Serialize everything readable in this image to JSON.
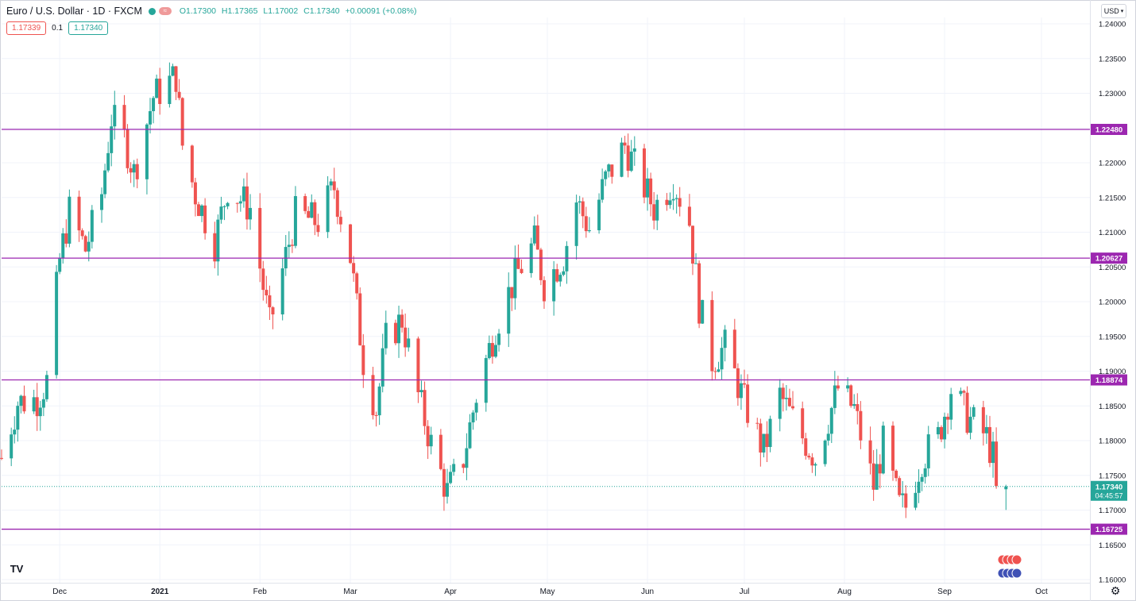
{
  "header": {
    "symbol": "Euro / U.S. Dollar · 1D · FXCM",
    "open": "O1.17300",
    "high": "H1.17365",
    "low": "L1.17002",
    "close": "C1.17340",
    "change": "+0.00091 (+0.08%)",
    "bid": "1.17339",
    "spread": "0.1",
    "ask": "1.17340"
  },
  "currency_button": "USD",
  "colors": {
    "up": "#26a69a",
    "down": "#ef5350",
    "level_line": "#9c27b0",
    "grid": "#f0f3fa"
  },
  "icons": {
    "logo": "tradingview-logo",
    "settings": "gear-icon"
  },
  "chart_data": {
    "type": "candlestick",
    "title": "Euro / U.S. Dollar",
    "ylim": [
      1.16,
      1.24
    ],
    "y_ticks": [
      "1.24000",
      "1.23500",
      "1.23000",
      "1.22500",
      "1.22000",
      "1.21500",
      "1.21000",
      "1.20500",
      "1.20000",
      "1.19500",
      "1.19000",
      "1.18500",
      "1.18000",
      "1.17500",
      "1.17000",
      "1.16500",
      "1.16000"
    ],
    "x_ticks": [
      "Dec",
      "2021",
      "Feb",
      "Mar",
      "Apr",
      "May",
      "Jun",
      "Jul",
      "Aug",
      "Sep",
      "Oct"
    ],
    "x_range": [
      "2020-11-13",
      "2021-10-16"
    ],
    "horizontal_levels": [
      "1.22480",
      "1.20627",
      "1.18874",
      "1.16725"
    ],
    "last_price": "1.17340",
    "countdown": "04:45:57",
    "waypoints": [
      {
        "d": "2020-11-13",
        "c": 1.1775
      },
      {
        "d": "2020-11-18",
        "c": 1.1855
      },
      {
        "d": "2020-11-24",
        "c": 1.186
      },
      {
        "d": "2020-11-27",
        "c": 1.1885
      },
      {
        "d": "2020-12-01",
        "c": 1.206
      },
      {
        "d": "2020-12-04",
        "c": 1.213
      },
      {
        "d": "2020-12-09",
        "c": 1.2075
      },
      {
        "d": "2020-12-14",
        "c": 1.2155
      },
      {
        "d": "2020-12-17",
        "c": 1.2265
      },
      {
        "d": "2020-12-21",
        "c": 1.2235
      },
      {
        "d": "2020-12-24",
        "c": 1.2185
      },
      {
        "d": "2020-12-30",
        "c": 1.2295
      },
      {
        "d": "2021-01-06",
        "c": 1.2325
      },
      {
        "d": "2021-01-08",
        "c": 1.2225
      },
      {
        "d": "2021-01-12",
        "c": 1.2155
      },
      {
        "d": "2021-01-18",
        "c": 1.2085
      },
      {
        "d": "2021-01-22",
        "c": 1.2165
      },
      {
        "d": "2021-01-29",
        "c": 1.2135
      },
      {
        "d": "2021-02-04",
        "c": 1.1965
      },
      {
        "d": "2021-02-08",
        "c": 1.2045
      },
      {
        "d": "2021-02-12",
        "c": 1.2125
      },
      {
        "d": "2021-02-19",
        "c": 1.2115
      },
      {
        "d": "2021-02-24",
        "c": 1.2165
      },
      {
        "d": "2021-03-01",
        "c": 1.2065
      },
      {
        "d": "2021-03-05",
        "c": 1.1915
      },
      {
        "d": "2021-03-09",
        "c": 1.1845
      },
      {
        "d": "2021-03-12",
        "c": 1.1945
      },
      {
        "d": "2021-03-17",
        "c": 1.1975
      },
      {
        "d": "2021-03-22",
        "c": 1.1865
      },
      {
        "d": "2021-03-26",
        "c": 1.1795
      },
      {
        "d": "2021-03-31",
        "c": 1.1725
      },
      {
        "d": "2021-04-05",
        "c": 1.1775
      },
      {
        "d": "2021-04-09",
        "c": 1.1865
      },
      {
        "d": "2021-04-15",
        "c": 1.1965
      },
      {
        "d": "2021-04-21",
        "c": 1.2035
      },
      {
        "d": "2021-04-27",
        "c": 1.2085
      },
      {
        "d": "2021-04-30",
        "c": 1.2025
      },
      {
        "d": "2021-05-06",
        "c": 1.2065
      },
      {
        "d": "2021-05-10",
        "c": 1.2145
      },
      {
        "d": "2021-05-14",
        "c": 1.2105
      },
      {
        "d": "2021-05-19",
        "c": 1.2175
      },
      {
        "d": "2021-05-25",
        "c": 1.2225
      },
      {
        "d": "2021-05-28",
        "c": 1.2195
      },
      {
        "d": "2021-06-03",
        "c": 1.2135
      },
      {
        "d": "2021-06-09",
        "c": 1.2175
      },
      {
        "d": "2021-06-14",
        "c": 1.2115
      },
      {
        "d": "2021-06-17",
        "c": 1.1995
      },
      {
        "d": "2021-06-21",
        "c": 1.1915
      },
      {
        "d": "2021-06-25",
        "c": 1.1935
      },
      {
        "d": "2021-07-01",
        "c": 1.1855
      },
      {
        "d": "2021-07-07",
        "c": 1.1785
      },
      {
        "d": "2021-07-12",
        "c": 1.1865
      },
      {
        "d": "2021-07-19",
        "c": 1.1805
      },
      {
        "d": "2021-07-23",
        "c": 1.1775
      },
      {
        "d": "2021-07-30",
        "c": 1.1875
      },
      {
        "d": "2021-08-04",
        "c": 1.1845
      },
      {
        "d": "2021-08-10",
        "c": 1.1735
      },
      {
        "d": "2021-08-13",
        "c": 1.1795
      },
      {
        "d": "2021-08-18",
        "c": 1.1705
      },
      {
        "d": "2021-08-20",
        "c": 1.1705
      },
      {
        "d": "2021-08-25",
        "c": 1.1775
      },
      {
        "d": "2021-08-30",
        "c": 1.1805
      },
      {
        "d": "2021-09-03",
        "c": 1.1875
      },
      {
        "d": "2021-09-08",
        "c": 1.1835
      },
      {
        "d": "2021-09-14",
        "c": 1.1805
      },
      {
        "d": "2021-09-16",
        "c": 1.1775
      },
      {
        "d": "2021-09-17",
        "c": 1.1725
      },
      {
        "d": "2021-09-20",
        "c": 1.1734
      }
    ]
  }
}
